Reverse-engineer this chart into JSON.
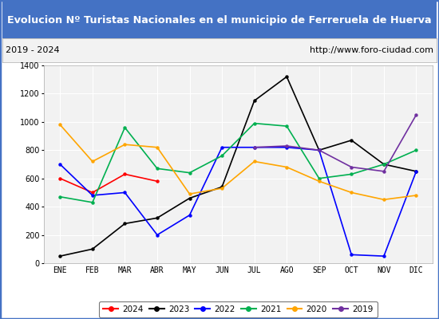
{
  "title": "Evolucion Nº Turistas Nacionales en el municipio de Ferreruela de Huerva",
  "subtitle_left": "2019 - 2024",
  "subtitle_right": "http://www.foro-ciudad.com",
  "title_bg_color": "#4472c4",
  "title_fg_color": "#ffffff",
  "subtitle_bg_color": "#f2f2f2",
  "subtitle_fg_color": "#000000",
  "plot_bg_color": "#f2f2f2",
  "border_color": "#4472c4",
  "months": [
    "ENE",
    "FEB",
    "MAR",
    "ABR",
    "MAY",
    "JUN",
    "JUL",
    "AGO",
    "SEP",
    "OCT",
    "NOV",
    "DIC"
  ],
  "ylim": [
    0,
    1400
  ],
  "yticks": [
    0,
    200,
    400,
    600,
    800,
    1000,
    1200,
    1400
  ],
  "series": {
    "2024": {
      "color": "#ff0000",
      "values": [
        600,
        500,
        630,
        580,
        null,
        null,
        null,
        null,
        null,
        null,
        null,
        null
      ]
    },
    "2023": {
      "color": "#000000",
      "values": [
        50,
        100,
        280,
        320,
        460,
        540,
        1150,
        1320,
        800,
        870,
        700,
        650
      ]
    },
    "2022": {
      "color": "#0000ff",
      "values": [
        700,
        480,
        500,
        200,
        340,
        820,
        820,
        820,
        800,
        60,
        50,
        650
      ]
    },
    "2021": {
      "color": "#00b050",
      "values": [
        470,
        430,
        960,
        670,
        640,
        760,
        990,
        970,
        600,
        630,
        700,
        800
      ]
    },
    "2020": {
      "color": "#ffa500",
      "values": [
        980,
        720,
        840,
        820,
        490,
        530,
        720,
        680,
        580,
        500,
        450,
        480
      ]
    },
    "2019": {
      "color": "#7030a0",
      "values": [
        null,
        null,
        null,
        null,
        null,
        null,
        820,
        830,
        800,
        680,
        650,
        1050
      ]
    }
  },
  "legend_order": [
    "2024",
    "2023",
    "2022",
    "2021",
    "2020",
    "2019"
  ]
}
